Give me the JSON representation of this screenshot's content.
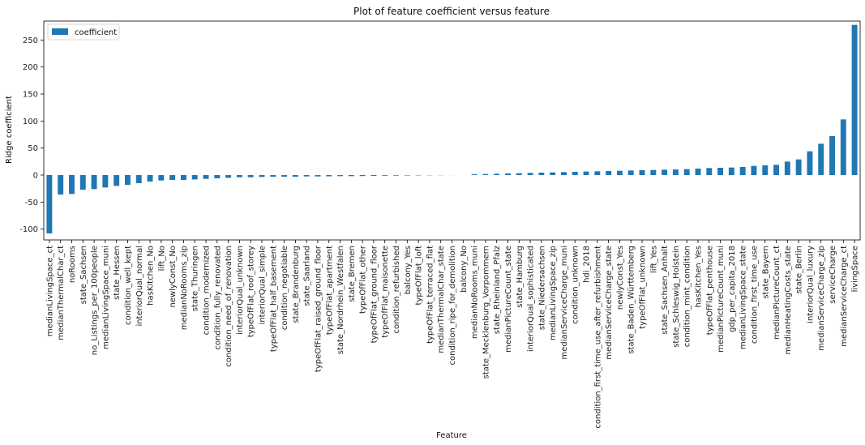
{
  "chart_data": {
    "type": "bar",
    "title": "Plot of feature coefficient versus feature",
    "xlabel": "Feature",
    "ylabel": "Ridge coefficient",
    "ylim": [
      -120,
      285
    ],
    "yticks": [
      -100,
      -50,
      0,
      50,
      100,
      150,
      200,
      250
    ],
    "grid": false,
    "legend": {
      "placement": "top-left",
      "entries": [
        "coefficient"
      ]
    },
    "bar_color": "#1f77b4",
    "series": [
      {
        "name": "coefficient",
        "categories": [
          "medianLivingSpace_ct",
          "medianThermalChar_ct",
          "noRooms",
          "state_Sachsen",
          "no_Listings_per_100people",
          "medianLivingSpace_muni",
          "state_Hessen",
          "condition_well_kept",
          "interiorQual_normal",
          "hasKitchen_No",
          "lift_No",
          "newlyConst_No",
          "medianNoRooms_zip",
          "state_Thuringen",
          "condition_modernized",
          "condition_fully_renovated",
          "condition_need_of_renovation",
          "interiorQual_unknown",
          "typeOfFlat_roof_storey",
          "interiorQual_simple",
          "typeOfFlat_half_basement",
          "condition_negotiable",
          "state_Brandenburg",
          "state_Saarland",
          "typeOfFlat_raised_ground_floor",
          "typeOfFlat_apartment",
          "state_Nordrhein_Westfalen",
          "state_Bremen",
          "typeOfFlat_other",
          "typeOfFlat_ground_floor",
          "typeOfFlat_maisonette",
          "condition_refurbished",
          "balcony_Yes",
          "typeOfFlat_loft",
          "typeOfFlat_terraced_flat",
          "medianThermalChar_state",
          "condition_ripe_for_demolition",
          "balcony_No",
          "medianNoRooms_muni",
          "state_Mecklenburg_Vorpommern",
          "state_Rheinland_Pfalz",
          "medianPictureCount_state",
          "state_Hamburg",
          "interiorQual_sophisticated",
          "state_Niedersachsen",
          "medianLivingSpace_zip",
          "medianServiceCharge_muni",
          "condition_unknown",
          "hdi_2018",
          "condition_first_time_use_after_refurbishment",
          "medianServiceCharge_state",
          "newlyConst_Yes",
          "state_Baden_Württemberg",
          "typeOfFlat_unknown",
          "lift_Yes",
          "state_Sachsen_Anhalt",
          "state_Schleswig_Holstein",
          "condition_mint_condition",
          "hasKitchen_Yes",
          "typeOfFlat_penthouse",
          "medianPictureCount_muni",
          "gdp_per_capita_2018",
          "medianLivingSpace_state",
          "condition_first_time_use",
          "state_Bayern",
          "medianPictureCount_ct",
          "medianHeatingCosts_state",
          "state_Berlin",
          "interiorQual_luxury",
          "medianServiceCharge_zip",
          "serviceCharge",
          "medianServiceCharge_ct",
          "livingSpace"
        ],
        "values": [
          -108,
          -36,
          -35,
          -27,
          -26,
          -23,
          -20,
          -18,
          -15,
          -12,
          -10,
          -9,
          -9,
          -8,
          -7,
          -6,
          -5,
          -4,
          -4,
          -3.5,
          -3,
          -3,
          -3,
          -2.5,
          -2.5,
          -2.3,
          -2,
          -2,
          -1.8,
          -1.6,
          -1.2,
          -1,
          -0.8,
          -0.6,
          -0.4,
          -0.3,
          -0.1,
          0,
          1.5,
          2,
          2.5,
          3,
          3.5,
          4,
          4.5,
          5,
          5.5,
          6,
          6.5,
          7,
          7.5,
          8,
          8.5,
          9,
          9.5,
          10,
          10.5,
          11,
          12,
          13,
          13.5,
          14,
          15,
          17,
          18,
          19,
          25,
          29,
          44,
          58,
          72,
          103,
          278
        ]
      }
    ]
  }
}
